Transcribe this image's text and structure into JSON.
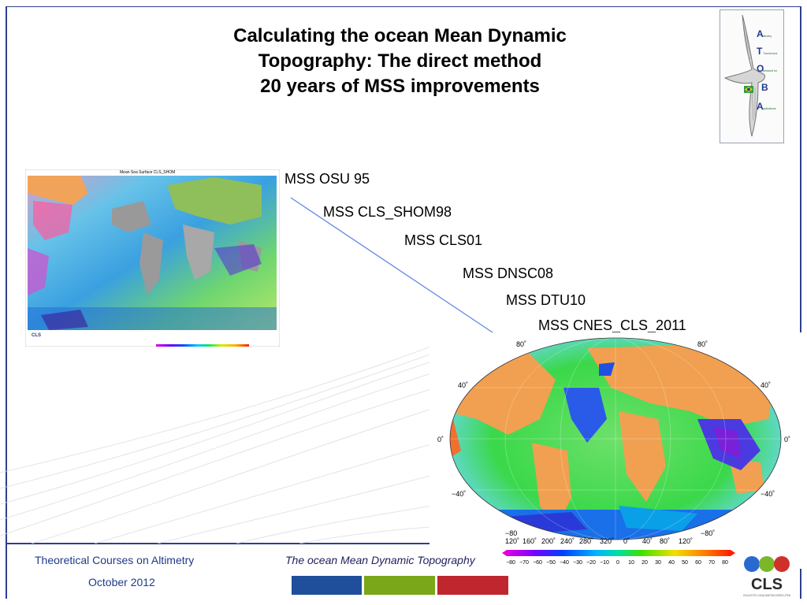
{
  "title": {
    "line1": "Calculating the ocean Mean Dynamic",
    "line2": "Topography: The direct method",
    "line3": "20 years of MSS improvements"
  },
  "logo": {
    "letters": [
      "A",
      "T",
      "O",
      "B",
      "A"
    ],
    "words": [
      "ltimetry",
      "Tutorial and",
      "ptimized for",
      "",
      "pplications"
    ]
  },
  "mss_list": [
    "MSS OSU 95",
    "MSS CLS_SHOM98",
    "MSS CLS01",
    "MSS DNSC08",
    "MSS DTU10",
    "MSS CNES_CLS_2011"
  ],
  "left_map": {
    "title": "Mean Sea Surface CLS_SHOM",
    "brand": "CLS"
  },
  "right_map": {
    "lat_labels": [
      "80˚",
      "40˚",
      "0˚",
      "−40˚",
      "−80"
    ],
    "lat_labels_right": [
      "80˚",
      "40˚",
      "0˚",
      "−40˚",
      "−80˚"
    ],
    "lon_labels": [
      "120˚",
      "160˚",
      "200˚",
      "240˚",
      "280˚",
      "320˚",
      "0˚",
      "40˚",
      "80˚",
      "120˚"
    ],
    "colorbar_ticks": [
      "−80",
      "−70",
      "−60",
      "−50",
      "−40",
      "−30",
      "−20",
      "−10",
      "0",
      "10",
      "20",
      "30",
      "40",
      "50",
      "60",
      "70",
      "80"
    ]
  },
  "footer": {
    "course": "Theoretical Courses on Altimetry",
    "date": "October 2012",
    "topic": "The ocean Mean Dynamic Topography",
    "bar_colors": [
      "#1f4e9a",
      "#7aa61a",
      "#c0262e"
    ],
    "brand": "CLS",
    "brand_sub": "COLLECTE LOCALISATION SATELLITES"
  }
}
